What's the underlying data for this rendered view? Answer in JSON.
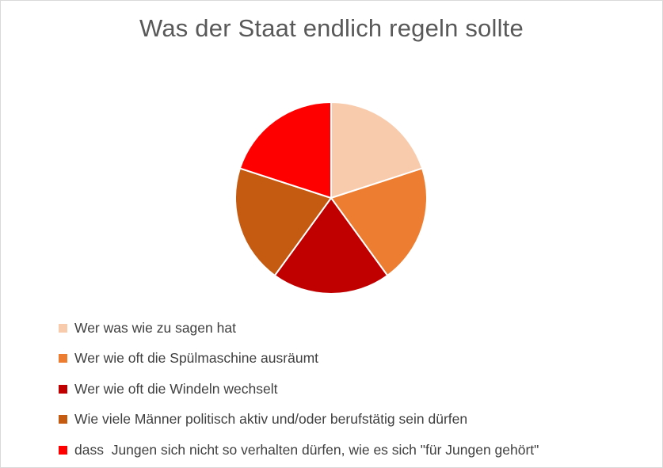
{
  "chart_data": {
    "type": "pie",
    "title": "Was der Staat endlich regeln sollte",
    "slices": [
      {
        "label": "Wer was wie zu sagen hat",
        "value": 20,
        "color": "#F8CBAD"
      },
      {
        "label": "Wer wie oft die Spülmaschine ausräumt",
        "value": 20,
        "color": "#ED7D31"
      },
      {
        "label": "Wer wie oft die Windeln wechselt",
        "value": 20,
        "color": "#C00000"
      },
      {
        "label": "Wie viele Männer politisch aktiv und/oder berufstätig sein dürfen",
        "value": 20,
        "color": "#C55A11"
      },
      {
        "label": "dass  Jungen sich nicht so verhalten dürfen, wie es sich \"für Jungen gehört\"",
        "value": 20,
        "color": "#FF0000"
      }
    ],
    "legend_position": "bottom"
  }
}
